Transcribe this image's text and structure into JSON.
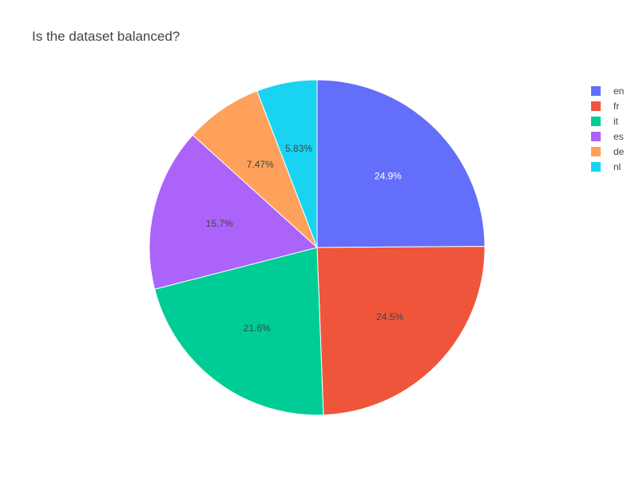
{
  "chart_data": {
    "type": "pie",
    "title": "Is the dataset balanced?",
    "labels": [
      "en",
      "fr",
      "it",
      "es",
      "de",
      "nl"
    ],
    "values": [
      24.9,
      24.5,
      21.6,
      15.7,
      7.47,
      5.83
    ],
    "percent_labels": [
      "24.9%",
      "24.5%",
      "21.6%",
      "15.7%",
      "7.47%",
      "5.83%"
    ],
    "colors": [
      "#636efa",
      "#ef553b",
      "#00cc96",
      "#ab63fa",
      "#ffa15a",
      "#19d3f3"
    ],
    "label_colors": [
      "#ffffff",
      "#444444",
      "#444444",
      "#444444",
      "#444444",
      "#444444"
    ],
    "direction": "clockwise",
    "rotation_start": "top",
    "legend_position": "top-right"
  }
}
